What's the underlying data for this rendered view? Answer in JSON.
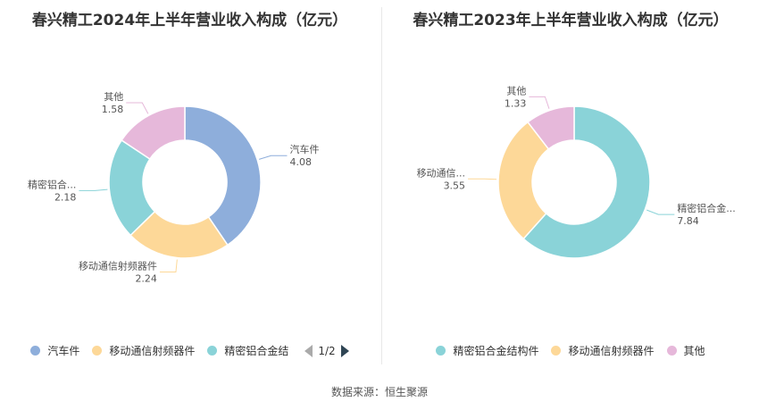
{
  "source": "数据来源：恒生聚源",
  "chart_data": [
    {
      "type": "pie",
      "title": "春兴精工2024年上半年营业收入构成（亿元）",
      "slices": [
        {
          "name": "汽车件",
          "label": "汽车件",
          "value": 4.08,
          "value_label": "4.08",
          "color": "#8eaedb"
        },
        {
          "name": "移动通信射频器件",
          "label": "移动通信射频器件",
          "value": 2.24,
          "value_label": "2.24",
          "color": "#fdd898"
        },
        {
          "name": "精密铝合金结构件",
          "label": "精密铝合...",
          "value": 2.18,
          "value_label": "2.18",
          "color": "#8ad3d8"
        },
        {
          "name": "其他",
          "label": "其他",
          "value": 1.58,
          "value_label": "1.58",
          "color": "#e6b8da"
        }
      ],
      "legend": {
        "items": [
          "汽车件",
          "移动通信射频器件",
          "精密铝合金结"
        ],
        "colors": [
          "#8eaedb",
          "#fdd898",
          "#8ad3d8"
        ],
        "page": "1/2",
        "placement": "bottom"
      }
    },
    {
      "type": "pie",
      "title": "春兴精工2023年上半年营业收入构成（亿元）",
      "slices": [
        {
          "name": "精密铝合金结构件",
          "label": "精密铝合金...",
          "value": 7.84,
          "value_label": "7.84",
          "color": "#8ad3d8"
        },
        {
          "name": "移动通信射频器件",
          "label": "移动通信...",
          "value": 3.55,
          "value_label": "3.55",
          "color": "#fdd898"
        },
        {
          "name": "其他",
          "label": "其他",
          "value": 1.33,
          "value_label": "1.33",
          "color": "#e6b8da"
        }
      ],
      "legend": {
        "items": [
          "精密铝合金结构件",
          "移动通信射频器件",
          "其他"
        ],
        "colors": [
          "#8ad3d8",
          "#fdd898",
          "#e6b8da"
        ],
        "placement": "bottom"
      }
    }
  ]
}
